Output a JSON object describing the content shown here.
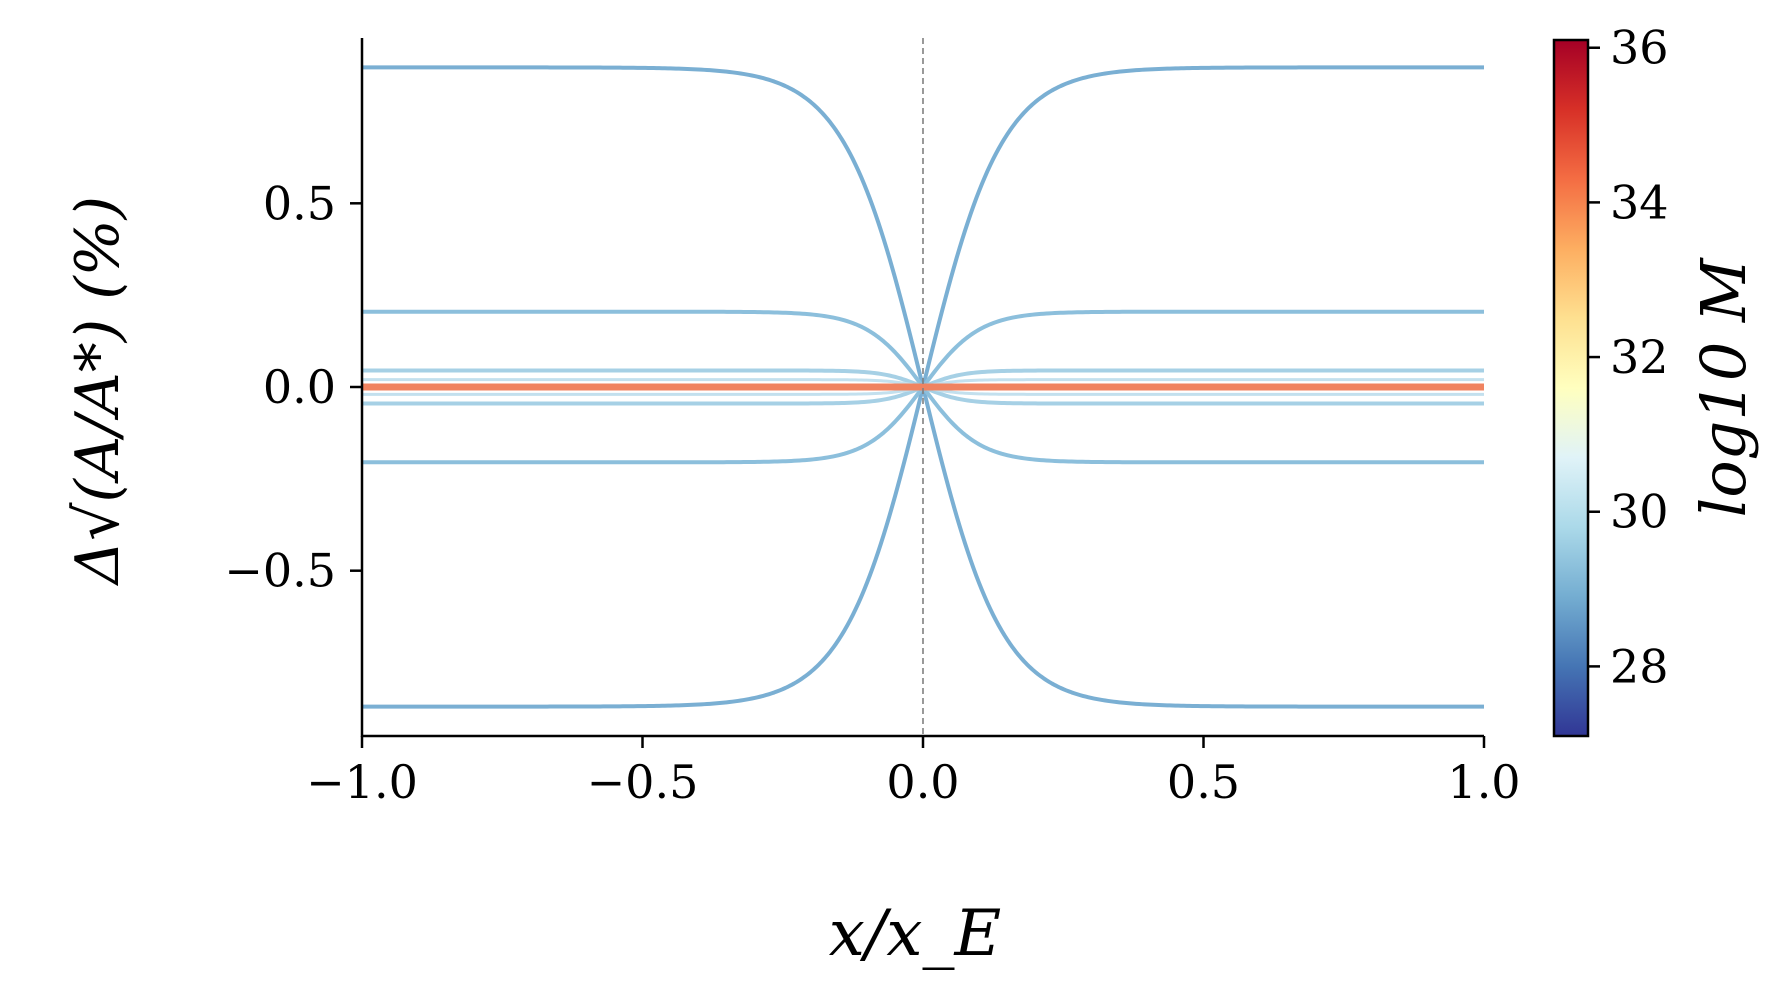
{
  "chart_data": {
    "type": "line",
    "xlabel": "x/x_E",
    "ylabel": "Δ√(A/A*) (%)",
    "xlim": [
      -1.0,
      1.0
    ],
    "ylim": [
      -0.95,
      0.95
    ],
    "xticks": [
      -1.0,
      -0.5,
      0.0,
      0.5,
      1.0
    ],
    "xtick_labels": [
      "−1.0",
      "−0.5",
      "0.0",
      "0.5",
      "1.0"
    ],
    "yticks": [
      -0.5,
      0.0,
      0.5
    ],
    "ytick_labels": [
      "−0.5",
      "0.0",
      "0.5"
    ],
    "reference_line": {
      "x": 0.0,
      "style": "dashed",
      "color": "#808080"
    },
    "grid": false,
    "colorbar": {
      "label": "log10 M",
      "range": [
        27.1,
        36.1
      ],
      "ticks": [
        28,
        30,
        32,
        34,
        36
      ],
      "tick_labels": [
        "28",
        "30",
        "32",
        "34",
        "36"
      ],
      "colormap": "RdYlBu_r",
      "stops": [
        "#313695",
        "#4575b4",
        "#74add1",
        "#abd9e9",
        "#e0f3f8",
        "#ffffbf",
        "#fee090",
        "#fdae61",
        "#f46d43",
        "#d73027",
        "#a50026"
      ]
    },
    "series": [
      {
        "plateau": 0.87,
        "width": 0.14,
        "color": "#7aafd3",
        "stroke": 4
      },
      {
        "plateau": -0.87,
        "width": 0.14,
        "color": "#7aafd3",
        "stroke": 4
      },
      {
        "plateau": 0.205,
        "width": 0.1,
        "color": "#8cbfdc",
        "stroke": 4
      },
      {
        "plateau": -0.205,
        "width": 0.1,
        "color": "#8cbfdc",
        "stroke": 4
      },
      {
        "plateau": 0.045,
        "width": 0.07,
        "color": "#a6d0e5",
        "stroke": 4
      },
      {
        "plateau": -0.045,
        "width": 0.07,
        "color": "#a6d0e5",
        "stroke": 4
      },
      {
        "plateau": 0.02,
        "width": 0.06,
        "color": "#c3e0ee",
        "stroke": 3
      },
      {
        "plateau": -0.02,
        "width": 0.06,
        "color": "#c3e0ee",
        "stroke": 3
      },
      {
        "plateau": 0.0,
        "width": 0.05,
        "color": "#f08360",
        "stroke": 7
      }
    ]
  }
}
